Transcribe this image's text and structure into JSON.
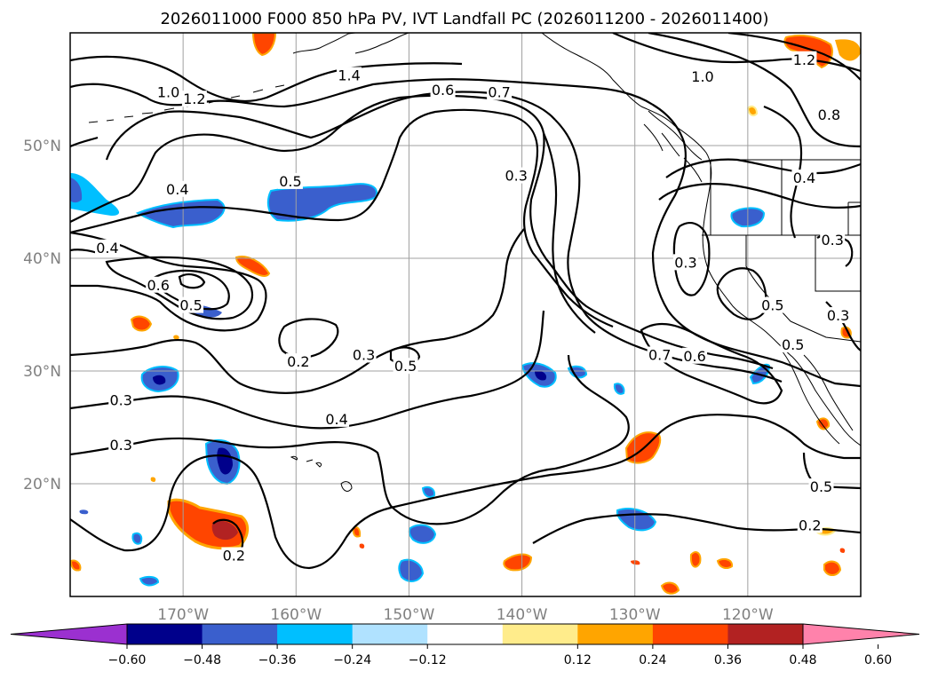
{
  "chart_data": {
    "type": "contour-map",
    "title": "2026011000 F000 850 hPa PV, IVT Landfall PC (2026011200 - 2026011400)",
    "lat_ticks": [
      "50°N",
      "40°N",
      "30°N",
      "20°N"
    ],
    "lat_values": [
      50,
      40,
      30,
      20
    ],
    "lon_ticks": [
      "170°W",
      "160°W",
      "150°W",
      "140°W",
      "130°W",
      "120°W"
    ],
    "lon_values": [
      -170,
      -160,
      -150,
      -140,
      -130,
      -120
    ],
    "extent": {
      "lon": [
        -180,
        -110
      ],
      "lat": [
        10,
        60
      ]
    },
    "grid": true,
    "colorbar": {
      "extend": "both",
      "ticks": [
        "−0.60",
        "−0.48",
        "−0.36",
        "−0.24",
        "−0.12",
        "0.12",
        "0.24",
        "0.36",
        "0.48",
        "0.60"
      ],
      "levels": [
        -0.6,
        -0.48,
        -0.36,
        -0.24,
        -0.12,
        0.12,
        0.24,
        0.36,
        0.48,
        0.6
      ],
      "colors": [
        "#9b30d0",
        "#00008b",
        "#3a5fcd",
        "#00bfff",
        "#b0e2ff",
        "#ffffff",
        "#ffec8b",
        "#ffa500",
        "#ff4500",
        "#b22222",
        "#ff82ab"
      ]
    },
    "contour_labels": [
      {
        "text": "1.4",
        "lon": -155.3,
        "lat": 56.1
      },
      {
        "text": "1.0",
        "lon": -171.3,
        "lat": 54.6
      },
      {
        "text": "1.2",
        "lon": -169.0,
        "lat": 54.0
      },
      {
        "text": "0.6",
        "lon": -147.0,
        "lat": 54.8
      },
      {
        "text": "0.7",
        "lon": -142.0,
        "lat": 54.6
      },
      {
        "text": "1.0",
        "lon": -124.0,
        "lat": 56.0
      },
      {
        "text": "1.2",
        "lon": -115.0,
        "lat": 57.5
      },
      {
        "text": "0.8",
        "lon": -112.8,
        "lat": 52.6
      },
      {
        "text": "0.3",
        "lon": -140.5,
        "lat": 47.2
      },
      {
        "text": "0.4",
        "lon": -170.5,
        "lat": 46.0
      },
      {
        "text": "0.5",
        "lon": -160.5,
        "lat": 46.7
      },
      {
        "text": "0.4",
        "lon": -176.7,
        "lat": 40.8
      },
      {
        "text": "0.6",
        "lon": -172.2,
        "lat": 37.5
      },
      {
        "text": "0.5",
        "lon": -169.3,
        "lat": 35.7
      },
      {
        "text": "0.3",
        "lon": -125.5,
        "lat": 39.5
      },
      {
        "text": "0.5",
        "lon": -117.8,
        "lat": 35.7
      },
      {
        "text": "0.5",
        "lon": -116.0,
        "lat": 32.2
      },
      {
        "text": "0.7",
        "lon": -127.8,
        "lat": 31.3
      },
      {
        "text": "0.6",
        "lon": -124.7,
        "lat": 31.2
      },
      {
        "text": "0.3",
        "lon": -112.0,
        "lat": 34.8
      },
      {
        "text": "0.4",
        "lon": -115.0,
        "lat": 47.0
      },
      {
        "text": "0.3",
        "lon": -112.5,
        "lat": 41.5
      },
      {
        "text": "0.2",
        "lon": -159.8,
        "lat": 30.7
      },
      {
        "text": "0.3",
        "lon": -154.0,
        "lat": 31.3
      },
      {
        "text": "0.5",
        "lon": -150.3,
        "lat": 30.3
      },
      {
        "text": "0.3",
        "lon": -175.5,
        "lat": 27.3
      },
      {
        "text": "0.4",
        "lon": -156.4,
        "lat": 25.6
      },
      {
        "text": "0.3",
        "lon": -175.5,
        "lat": 23.3
      },
      {
        "text": "0.5",
        "lon": -113.5,
        "lat": 19.6
      },
      {
        "text": "0.2",
        "lon": -114.5,
        "lat": 16.2
      },
      {
        "text": "0.2",
        "lon": -165.5,
        "lat": 13.5
      }
    ]
  }
}
